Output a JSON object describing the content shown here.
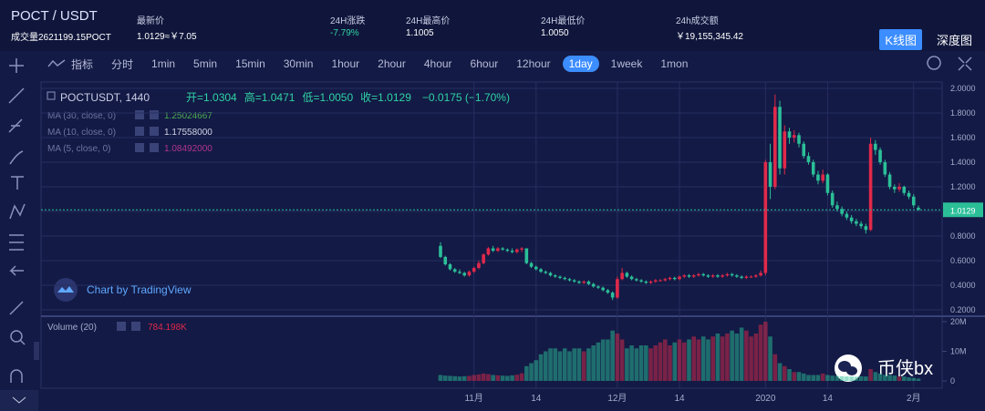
{
  "header": {
    "pair": "POCT / USDT",
    "volume": "成交量2621199.15POCT",
    "stats": [
      {
        "label": "最新价",
        "value": "1.0129≈￥7.05",
        "color": "#ffffff"
      },
      {
        "label": "24H涨跌",
        "value": "-7.79%",
        "color": "#2fd3a3"
      },
      {
        "label": "24H最高价",
        "value": "1.1005",
        "color": "#ffffff"
      },
      {
        "label": "24H最低价",
        "value": "1.0050",
        "color": "#ffffff"
      },
      {
        "label": "24h成交额",
        "value": "￥19,155,345.42",
        "color": "#ffffff"
      }
    ],
    "tabs": [
      {
        "label": "K线图",
        "active": true
      },
      {
        "label": "深度图",
        "active": false
      }
    ]
  },
  "toolbar": {
    "indicators": "指标",
    "intervals": [
      {
        "label": "分时",
        "active": false
      },
      {
        "label": "1min",
        "active": false
      },
      {
        "label": "5min",
        "active": false
      },
      {
        "label": "15min",
        "active": false
      },
      {
        "label": "30min",
        "active": false
      },
      {
        "label": "1hour",
        "active": false
      },
      {
        "label": "2hour",
        "active": false
      },
      {
        "label": "4hour",
        "active": false
      },
      {
        "label": "6hour",
        "active": false
      },
      {
        "label": "12hour",
        "active": false
      },
      {
        "label": "1day",
        "active": true
      },
      {
        "label": "1week",
        "active": false
      },
      {
        "label": "1mon",
        "active": false
      }
    ]
  },
  "legend": {
    "symbol": "POCTUSDT, 1440",
    "ohlc": [
      "开=1.0304",
      "高=1.0471",
      "低=1.0050",
      "收=1.0129"
    ],
    "change": "−0.0175 (−1.70%)",
    "ma": [
      {
        "name": "MA (30, close, 0)",
        "value": "1.25024667",
        "color": "#4cb050"
      },
      {
        "name": "MA (10, close, 0)",
        "value": "1.17558000",
        "color": "#d0d4e4"
      },
      {
        "name": "MA (5, close, 0)",
        "value": "1.08492000",
        "color": "#b0358c"
      }
    ]
  },
  "watermark": "Chart by TradingView",
  "brand": "币侠bx",
  "chart_data": {
    "type": "candlestick",
    "up_color": "#e0294a",
    "down_color": "#2bbf98",
    "categories": [
      null,
      null,
      null,
      null,
      null,
      null,
      null,
      "11月",
      null,
      null,
      null,
      null,
      null,
      null,
      null,
      null,
      null,
      null,
      null,
      null,
      "14",
      null,
      null,
      null,
      null,
      null,
      null,
      null,
      null,
      null,
      null,
      null,
      null,
      null,
      null,
      null,
      null,
      "12月",
      null,
      null,
      null,
      null,
      null,
      null,
      null,
      null,
      null,
      null,
      null,
      null,
      "14",
      null,
      null,
      null,
      null,
      null,
      null,
      null,
      null,
      null,
      null,
      null,
      null,
      null,
      null,
      null,
      null,
      null,
      "2020",
      null,
      null,
      null,
      null,
      null,
      null,
      null,
      null,
      null,
      null,
      null,
      null,
      "14",
      null,
      null,
      null,
      null,
      null,
      null,
      null,
      null,
      null,
      null,
      null,
      null,
      null,
      null,
      null,
      null,
      null,
      "2月",
      null
    ],
    "open": [
      0.72,
      0.63,
      0.57,
      0.53,
      0.51,
      0.5,
      0.48,
      0.51,
      0.54,
      0.58,
      0.65,
      0.7,
      0.68,
      0.7,
      0.69,
      0.68,
      0.67,
      0.69,
      0.7,
      0.58,
      0.55,
      0.53,
      0.51,
      0.5,
      0.48,
      0.47,
      0.46,
      0.45,
      0.44,
      0.43,
      0.42,
      0.43,
      0.41,
      0.39,
      0.38,
      0.36,
      0.34,
      0.3,
      0.45,
      0.5,
      0.47,
      0.45,
      0.44,
      0.43,
      0.42,
      0.43,
      0.44,
      0.44,
      0.45,
      0.46,
      0.45,
      0.47,
      0.48,
      0.47,
      0.48,
      0.49,
      0.48,
      0.47,
      0.48,
      0.47,
      0.48,
      0.49,
      0.48,
      0.47,
      0.46,
      0.47,
      0.47,
      0.48,
      0.5,
      1.4,
      1.2,
      1.85,
      1.35,
      1.65,
      1.6,
      1.62,
      1.55,
      1.45,
      1.4,
      1.3,
      1.25,
      1.3,
      1.15,
      1.05,
      1.02,
      0.98,
      0.95,
      0.92,
      0.9,
      0.88,
      0.85,
      1.55,
      1.5,
      1.4,
      1.3,
      1.2,
      1.18,
      1.2,
      1.15,
      1.12,
      1.0304
    ],
    "high": [
      0.75,
      0.64,
      0.58,
      0.54,
      0.53,
      0.51,
      0.52,
      0.55,
      0.6,
      0.66,
      0.71,
      0.72,
      0.71,
      0.71,
      0.7,
      0.7,
      0.7,
      0.71,
      0.7,
      0.59,
      0.56,
      0.54,
      0.52,
      0.51,
      0.49,
      0.48,
      0.47,
      0.46,
      0.45,
      0.44,
      0.44,
      0.44,
      0.42,
      0.4,
      0.39,
      0.37,
      0.35,
      0.47,
      0.54,
      0.51,
      0.48,
      0.46,
      0.45,
      0.44,
      0.44,
      0.45,
      0.45,
      0.46,
      0.47,
      0.47,
      0.48,
      0.49,
      0.49,
      0.49,
      0.5,
      0.5,
      0.49,
      0.49,
      0.49,
      0.49,
      0.5,
      0.5,
      0.49,
      0.48,
      0.48,
      0.48,
      0.49,
      0.52,
      1.42,
      1.55,
      1.95,
      1.9,
      1.7,
      1.68,
      1.66,
      1.64,
      1.57,
      1.48,
      1.42,
      1.33,
      1.34,
      1.31,
      1.17,
      1.08,
      1.04,
      1.0,
      0.97,
      0.94,
      0.92,
      0.9,
      1.6,
      1.58,
      1.52,
      1.42,
      1.32,
      1.22,
      1.23,
      1.21,
      1.17,
      1.14,
      1.0471
    ],
    "low": [
      0.62,
      0.56,
      0.52,
      0.5,
      0.49,
      0.47,
      0.47,
      0.5,
      0.53,
      0.57,
      0.64,
      0.67,
      0.67,
      0.68,
      0.67,
      0.66,
      0.66,
      0.67,
      0.57,
      0.54,
      0.52,
      0.5,
      0.49,
      0.47,
      0.46,
      0.45,
      0.44,
      0.43,
      0.42,
      0.41,
      0.41,
      0.4,
      0.38,
      0.37,
      0.35,
      0.33,
      0.28,
      0.29,
      0.44,
      0.46,
      0.44,
      0.43,
      0.42,
      0.41,
      0.41,
      0.42,
      0.43,
      0.43,
      0.44,
      0.44,
      0.44,
      0.46,
      0.46,
      0.46,
      0.47,
      0.47,
      0.46,
      0.46,
      0.46,
      0.46,
      0.47,
      0.47,
      0.46,
      0.45,
      0.45,
      0.46,
      0.46,
      0.47,
      0.48,
      1.1,
      1.18,
      1.3,
      1.3,
      1.55,
      1.56,
      1.52,
      1.43,
      1.38,
      1.28,
      1.22,
      1.23,
      1.13,
      1.03,
      1.0,
      0.96,
      0.93,
      0.9,
      0.88,
      0.86,
      0.82,
      0.84,
      1.46,
      1.38,
      1.28,
      1.18,
      1.15,
      1.16,
      1.13,
      1.1,
      1.03,
      1.005
    ],
    "close": [
      0.63,
      0.57,
      0.53,
      0.51,
      0.5,
      0.48,
      0.51,
      0.54,
      0.58,
      0.65,
      0.7,
      0.68,
      0.7,
      0.69,
      0.68,
      0.67,
      0.69,
      0.7,
      0.58,
      0.55,
      0.53,
      0.51,
      0.5,
      0.48,
      0.47,
      0.46,
      0.45,
      0.44,
      0.43,
      0.42,
      0.43,
      0.41,
      0.39,
      0.38,
      0.36,
      0.34,
      0.3,
      0.45,
      0.5,
      0.47,
      0.45,
      0.44,
      0.43,
      0.42,
      0.43,
      0.44,
      0.44,
      0.45,
      0.46,
      0.45,
      0.47,
      0.48,
      0.47,
      0.48,
      0.49,
      0.48,
      0.47,
      0.48,
      0.47,
      0.48,
      0.49,
      0.48,
      0.47,
      0.46,
      0.47,
      0.47,
      0.48,
      0.5,
      1.4,
      1.2,
      1.85,
      1.35,
      1.65,
      1.6,
      1.62,
      1.55,
      1.45,
      1.4,
      1.3,
      1.25,
      1.3,
      1.15,
      1.05,
      1.02,
      0.98,
      0.95,
      0.92,
      0.9,
      0.88,
      0.85,
      1.55,
      1.5,
      1.4,
      1.3,
      1.2,
      1.18,
      1.2,
      1.15,
      1.12,
      1.05,
      1.0129
    ],
    "volume": [
      2000000,
      1800000,
      1700000,
      1600000,
      1500000,
      1600000,
      1700000,
      2000000,
      2200000,
      2500000,
      2300000,
      2000000,
      1900000,
      1800000,
      1700000,
      1900000,
      2100000,
      2600000,
      5000000,
      6000000,
      7000000,
      9000000,
      10000000,
      11000000,
      11000000,
      10000000,
      11000000,
      10000000,
      11000000,
      11000000,
      10000000,
      11000000,
      12000000,
      13000000,
      14000000,
      14000000,
      17000000,
      16000000,
      14000000,
      11000000,
      12000000,
      11000000,
      12000000,
      12000000,
      11000000,
      12000000,
      13000000,
      14000000,
      12000000,
      13000000,
      14000000,
      13000000,
      14000000,
      15000000,
      14000000,
      15000000,
      14000000,
      15000000,
      16000000,
      15000000,
      16000000,
      17000000,
      16000000,
      18000000,
      17000000,
      15000000,
      16000000,
      19000000,
      20000000,
      15000000,
      9000000,
      6000000,
      5000000,
      4000000,
      3000000,
      3000000,
      2500000,
      2000000,
      2000000,
      2000000,
      2500000,
      2000000,
      1800000,
      1700000,
      1600000,
      1500000,
      1500000,
      1400000,
      1600000,
      1500000,
      4000000,
      3000000,
      2500000,
      2000000,
      2000000,
      1800000,
      1500000,
      1500000,
      1200000,
      1000000,
      784198
    ],
    "volume_title": "Volume (20)",
    "volume_last_label": "784.198K",
    "ylim": [
      0.2,
      2.0
    ],
    "yticks": [
      {
        "value": 0.2,
        "label": "0.2000"
      },
      {
        "value": 0.4,
        "label": "0.4000"
      },
      {
        "value": 0.6,
        "label": "0.6000"
      },
      {
        "value": 0.8,
        "label": "0.8000"
      },
      {
        "value": 1.0,
        "label": "1.0000"
      },
      {
        "value": 1.2,
        "label": "1.2000"
      },
      {
        "value": 1.4,
        "label": "1.4000"
      },
      {
        "value": 1.6,
        "label": "1.6000"
      },
      {
        "value": 1.8,
        "label": "1.8000"
      },
      {
        "value": 2.0,
        "label": "2.0000"
      }
    ],
    "y2lim": [
      0,
      20000000
    ],
    "y2ticks": [
      0,
      {
        "value": 10000000,
        "label": "10M"
      },
      {
        "value": 20000000,
        "label": "20M"
      }
    ],
    "grid": true
  }
}
